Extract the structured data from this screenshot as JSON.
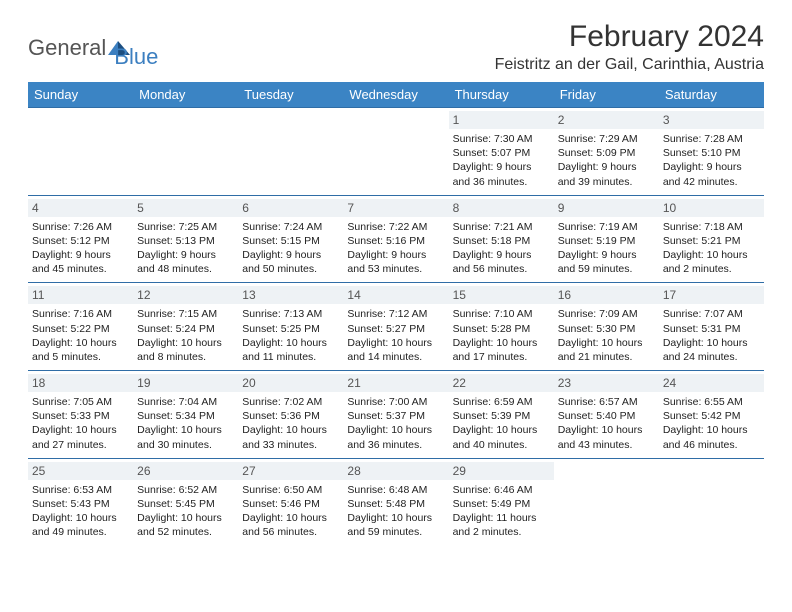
{
  "logo": {
    "part1": "General",
    "part2": "Blue"
  },
  "title": "February 2024",
  "location": "Feistritz an der Gail, Carinthia, Austria",
  "colors": {
    "header_bg": "#3b84c4",
    "header_text": "#ffffff",
    "cell_border": "#2f6da6",
    "daynum_bg": "#eef2f5",
    "logo_accent": "#3c7fc0"
  },
  "weekdays": [
    "Sunday",
    "Monday",
    "Tuesday",
    "Wednesday",
    "Thursday",
    "Friday",
    "Saturday"
  ],
  "weeks": [
    [
      null,
      null,
      null,
      null,
      {
        "n": "1",
        "sunrise": "7:30 AM",
        "sunset": "5:07 PM",
        "daylight": "9 hours and 36 minutes."
      },
      {
        "n": "2",
        "sunrise": "7:29 AM",
        "sunset": "5:09 PM",
        "daylight": "9 hours and 39 minutes."
      },
      {
        "n": "3",
        "sunrise": "7:28 AM",
        "sunset": "5:10 PM",
        "daylight": "9 hours and 42 minutes."
      }
    ],
    [
      {
        "n": "4",
        "sunrise": "7:26 AM",
        "sunset": "5:12 PM",
        "daylight": "9 hours and 45 minutes."
      },
      {
        "n": "5",
        "sunrise": "7:25 AM",
        "sunset": "5:13 PM",
        "daylight": "9 hours and 48 minutes."
      },
      {
        "n": "6",
        "sunrise": "7:24 AM",
        "sunset": "5:15 PM",
        "daylight": "9 hours and 50 minutes."
      },
      {
        "n": "7",
        "sunrise": "7:22 AM",
        "sunset": "5:16 PM",
        "daylight": "9 hours and 53 minutes."
      },
      {
        "n": "8",
        "sunrise": "7:21 AM",
        "sunset": "5:18 PM",
        "daylight": "9 hours and 56 minutes."
      },
      {
        "n": "9",
        "sunrise": "7:19 AM",
        "sunset": "5:19 PM",
        "daylight": "9 hours and 59 minutes."
      },
      {
        "n": "10",
        "sunrise": "7:18 AM",
        "sunset": "5:21 PM",
        "daylight": "10 hours and 2 minutes."
      }
    ],
    [
      {
        "n": "11",
        "sunrise": "7:16 AM",
        "sunset": "5:22 PM",
        "daylight": "10 hours and 5 minutes."
      },
      {
        "n": "12",
        "sunrise": "7:15 AM",
        "sunset": "5:24 PM",
        "daylight": "10 hours and 8 minutes."
      },
      {
        "n": "13",
        "sunrise": "7:13 AM",
        "sunset": "5:25 PM",
        "daylight": "10 hours and 11 minutes."
      },
      {
        "n": "14",
        "sunrise": "7:12 AM",
        "sunset": "5:27 PM",
        "daylight": "10 hours and 14 minutes."
      },
      {
        "n": "15",
        "sunrise": "7:10 AM",
        "sunset": "5:28 PM",
        "daylight": "10 hours and 17 minutes."
      },
      {
        "n": "16",
        "sunrise": "7:09 AM",
        "sunset": "5:30 PM",
        "daylight": "10 hours and 21 minutes."
      },
      {
        "n": "17",
        "sunrise": "7:07 AM",
        "sunset": "5:31 PM",
        "daylight": "10 hours and 24 minutes."
      }
    ],
    [
      {
        "n": "18",
        "sunrise": "7:05 AM",
        "sunset": "5:33 PM",
        "daylight": "10 hours and 27 minutes."
      },
      {
        "n": "19",
        "sunrise": "7:04 AM",
        "sunset": "5:34 PM",
        "daylight": "10 hours and 30 minutes."
      },
      {
        "n": "20",
        "sunrise": "7:02 AM",
        "sunset": "5:36 PM",
        "daylight": "10 hours and 33 minutes."
      },
      {
        "n": "21",
        "sunrise": "7:00 AM",
        "sunset": "5:37 PM",
        "daylight": "10 hours and 36 minutes."
      },
      {
        "n": "22",
        "sunrise": "6:59 AM",
        "sunset": "5:39 PM",
        "daylight": "10 hours and 40 minutes."
      },
      {
        "n": "23",
        "sunrise": "6:57 AM",
        "sunset": "5:40 PM",
        "daylight": "10 hours and 43 minutes."
      },
      {
        "n": "24",
        "sunrise": "6:55 AM",
        "sunset": "5:42 PM",
        "daylight": "10 hours and 46 minutes."
      }
    ],
    [
      {
        "n": "25",
        "sunrise": "6:53 AM",
        "sunset": "5:43 PM",
        "daylight": "10 hours and 49 minutes."
      },
      {
        "n": "26",
        "sunrise": "6:52 AM",
        "sunset": "5:45 PM",
        "daylight": "10 hours and 52 minutes."
      },
      {
        "n": "27",
        "sunrise": "6:50 AM",
        "sunset": "5:46 PM",
        "daylight": "10 hours and 56 minutes."
      },
      {
        "n": "28",
        "sunrise": "6:48 AM",
        "sunset": "5:48 PM",
        "daylight": "10 hours and 59 minutes."
      },
      {
        "n": "29",
        "sunrise": "6:46 AM",
        "sunset": "5:49 PM",
        "daylight": "11 hours and 2 minutes."
      },
      null,
      null
    ]
  ]
}
